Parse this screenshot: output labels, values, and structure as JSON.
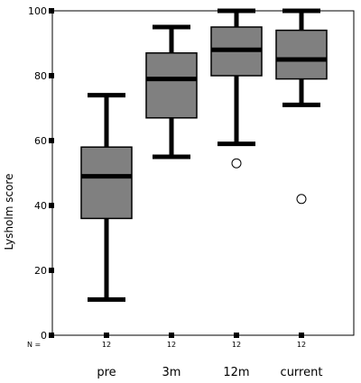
{
  "chart_data": {
    "type": "box",
    "title": "",
    "ylabel": "Lysholm score",
    "xlabel": "",
    "ylim": [
      0,
      100
    ],
    "yticks": [
      0,
      20,
      40,
      60,
      80,
      100
    ],
    "grid": false,
    "n_row_label": "N =",
    "categories": [
      "pre",
      "3m",
      "12m",
      "current"
    ],
    "n": [
      "12",
      "12",
      "12",
      "12"
    ],
    "boxes": [
      {
        "category": "pre",
        "whisker_low": 11,
        "q1": 36,
        "median": 49,
        "q3": 58,
        "whisker_high": 74,
        "outliers": []
      },
      {
        "category": "3m",
        "whisker_low": 55,
        "q1": 67,
        "median": 79,
        "q3": 87,
        "whisker_high": 95,
        "outliers": []
      },
      {
        "category": "12m",
        "whisker_low": 59,
        "q1": 80,
        "median": 88,
        "q3": 95,
        "whisker_high": 100,
        "outliers": [
          53
        ]
      },
      {
        "category": "current",
        "whisker_low": 71,
        "q1": 79,
        "median": 85,
        "q3": 94,
        "whisker_high": 100,
        "outliers": [
          42
        ]
      }
    ],
    "colors": {
      "box_fill": "#808080",
      "stroke": "#000000",
      "outlier_fill": "#ffffff"
    }
  }
}
